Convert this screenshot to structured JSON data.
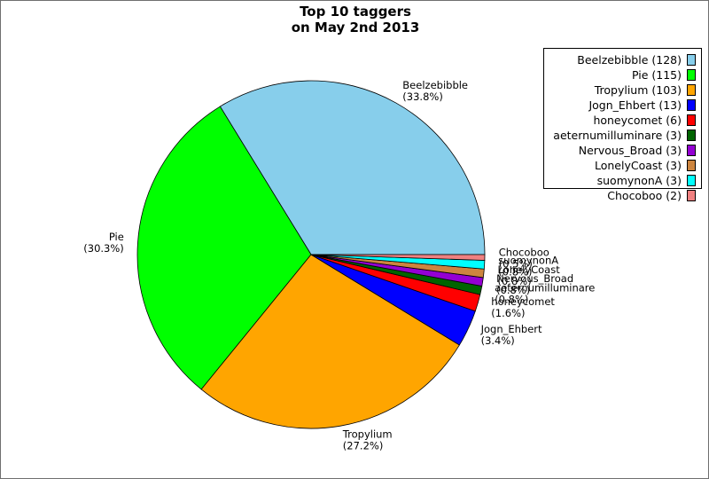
{
  "chart_data": {
    "type": "pie",
    "title": "Top 10 taggers",
    "subtitle": "on May 2nd 2013",
    "slices": [
      {
        "label": "Beelzebibble",
        "value": 128,
        "percent": "33.8%",
        "legend": "Beelzebibble (128)",
        "color": "#87ceeb"
      },
      {
        "label": "Pie",
        "value": 115,
        "percent": "30.3%",
        "legend": "Pie (115)",
        "color": "#00ff00"
      },
      {
        "label": "Tropylium",
        "value": 103,
        "percent": "27.2%",
        "legend": "Tropylium (103)",
        "color": "#ffa500"
      },
      {
        "label": "Jogn_Ehbert",
        "value": 13,
        "percent": "3.4%",
        "legend": "Jogn_Ehbert (13)",
        "color": "#0000ff"
      },
      {
        "label": "honeycomet",
        "value": 6,
        "percent": "1.6%",
        "legend": "honeycomet (6)",
        "color": "#ff0000"
      },
      {
        "label": "aeternumilluminare",
        "value": 3,
        "percent": "0.8%",
        "legend": "aeternumilluminare (3)",
        "color": "#006400"
      },
      {
        "label": "Nervous_Broad",
        "value": 3,
        "percent": "0.8%",
        "legend": "Nervous_Broad (3)",
        "color": "#9400d3"
      },
      {
        "label": "LonelyCoast",
        "value": 3,
        "percent": "0.8%",
        "legend": "LonelyCoast (3)",
        "color": "#cd853f"
      },
      {
        "label": "suomynonA",
        "value": 3,
        "percent": "0.8%",
        "legend": "suomynonA (3)",
        "color": "#00ffff"
      },
      {
        "label": "Chocoboo",
        "value": 2,
        "percent": "0.5%",
        "legend": "Chocoboo (2)",
        "color": "#f08080"
      }
    ],
    "legend_position": "top-right"
  }
}
